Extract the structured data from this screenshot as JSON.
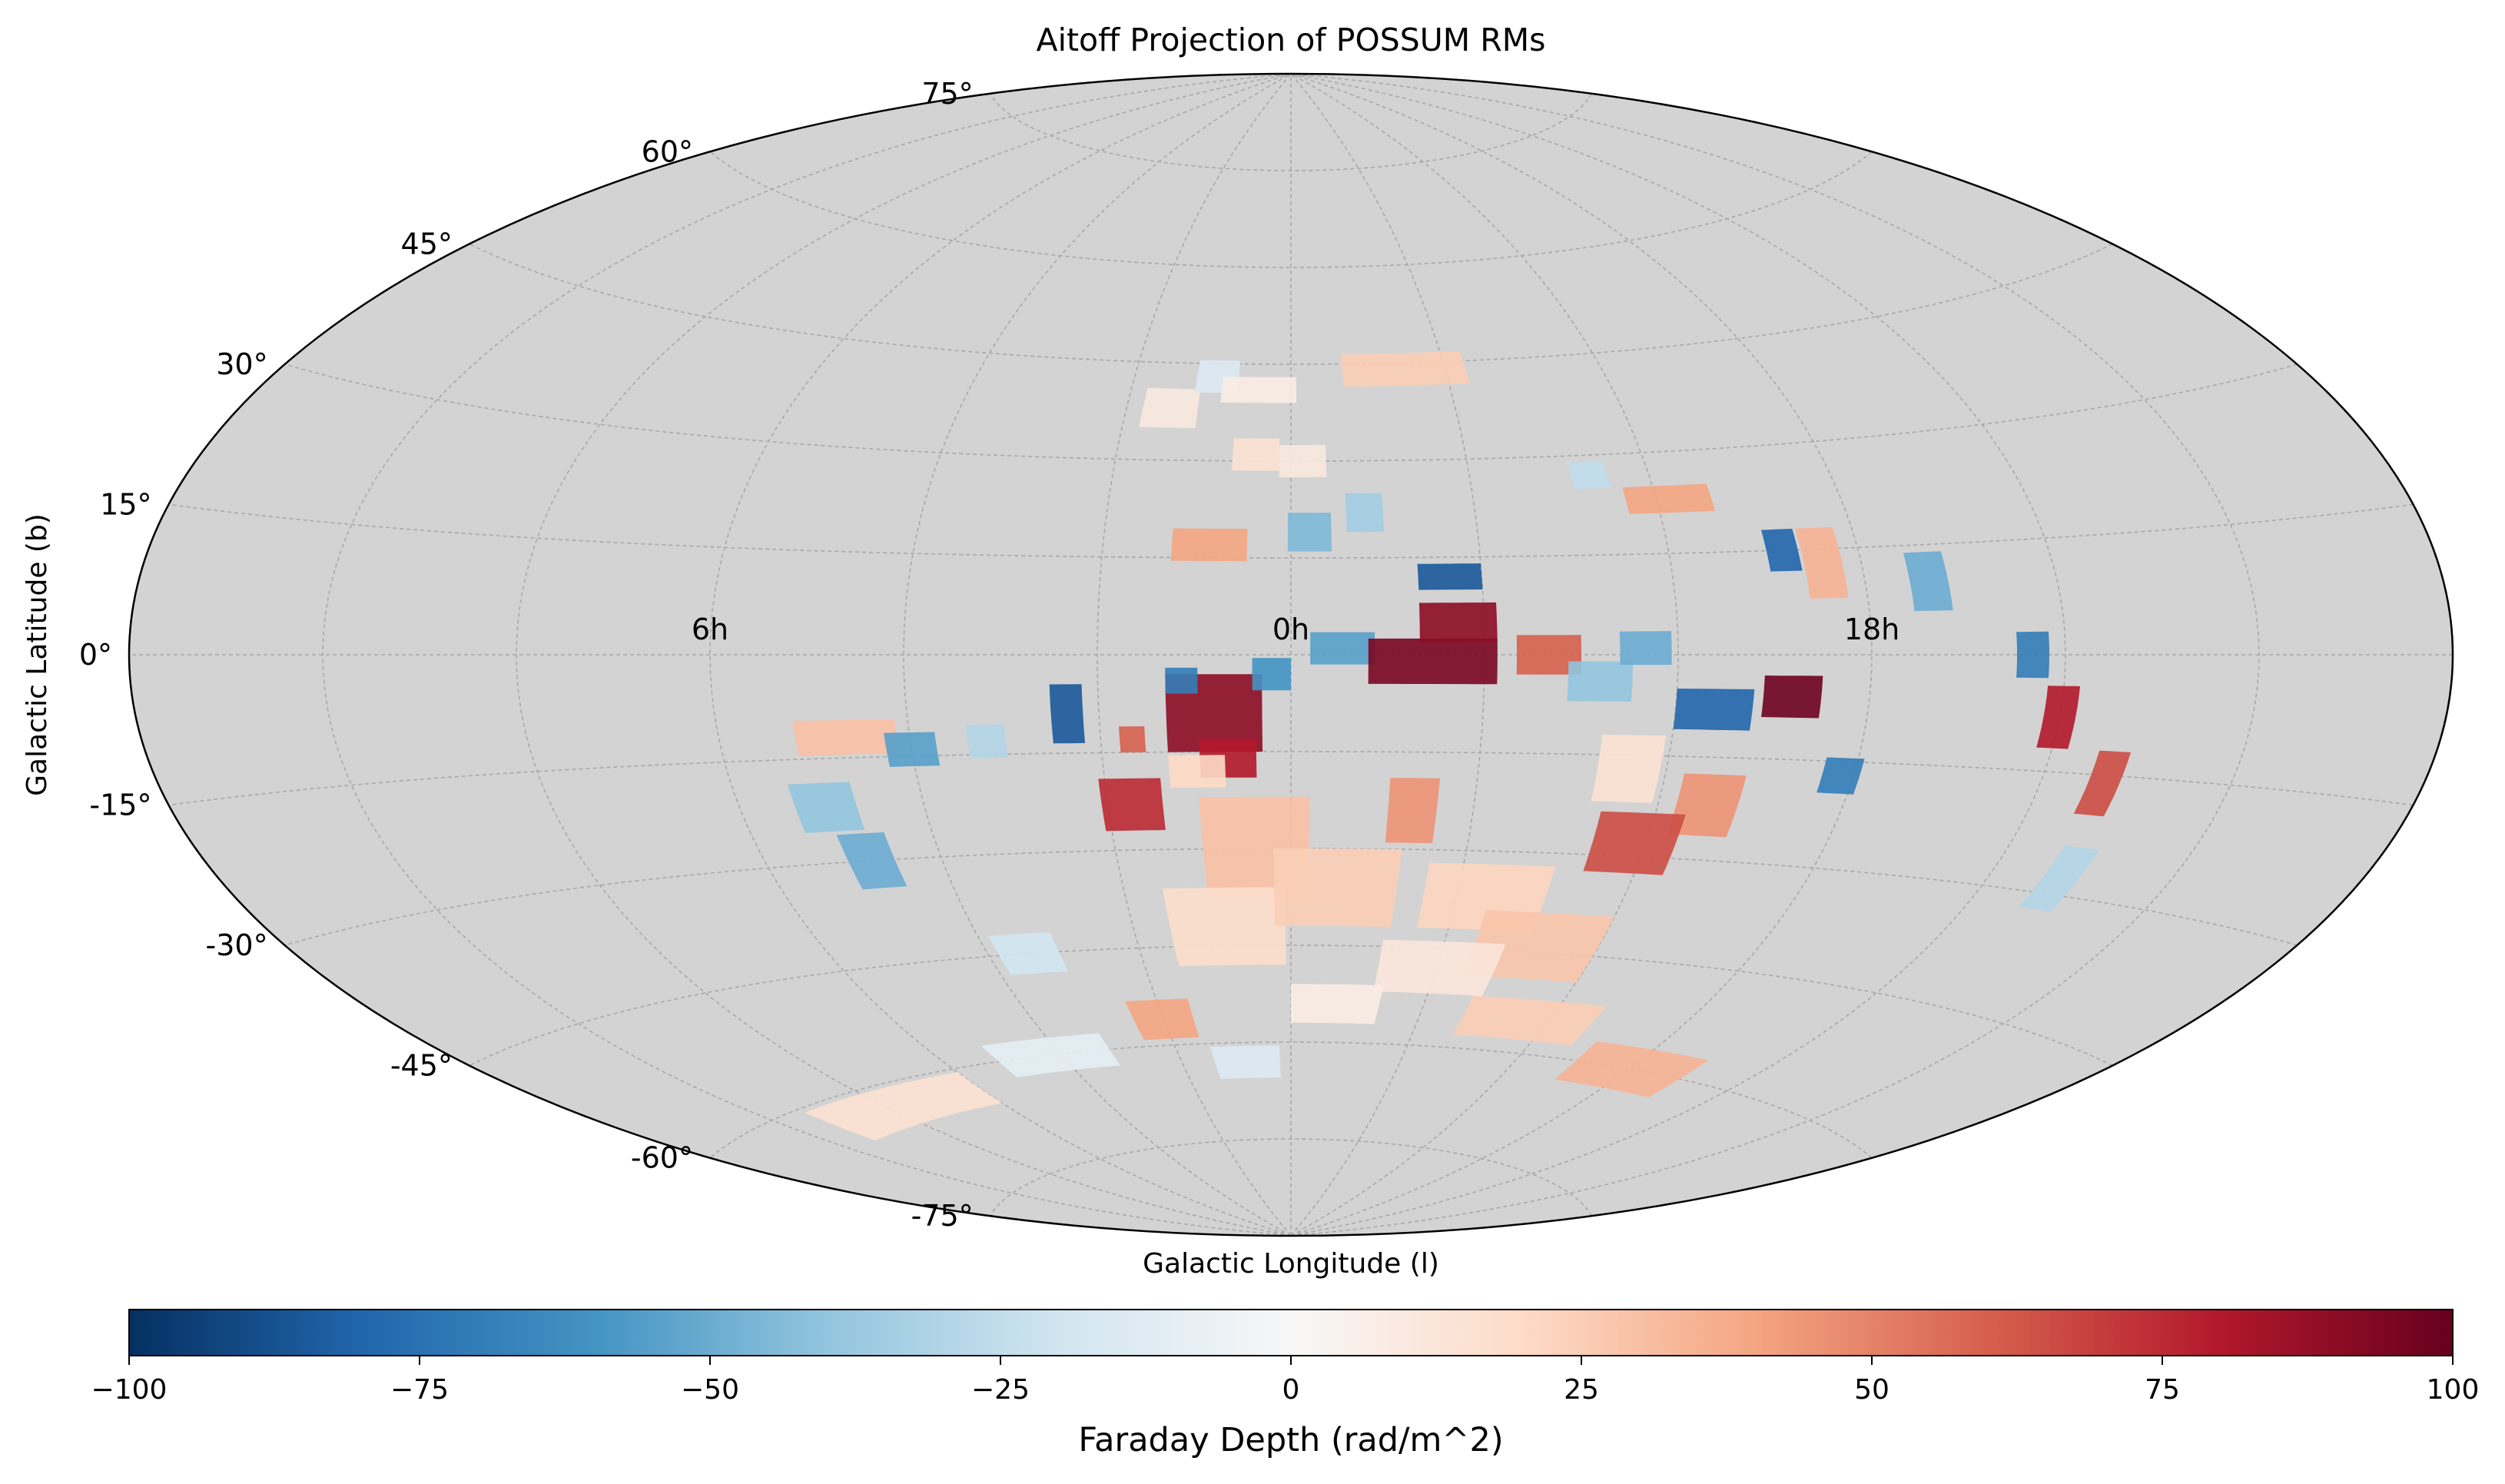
{
  "chart_data": {
    "type": "heatmap",
    "projection": "aitoff",
    "title": "Aitoff Projection of POSSUM RMs",
    "xlabel": "Galactic Longitude (l)",
    "ylabel": "Galactic Latitude (b)",
    "background_color": "#d3d3d3",
    "grid": true,
    "longitude_tick_labels": [
      {
        "label": "6h",
        "lon_deg": 90
      },
      {
        "label": "0h",
        "lon_deg": 0
      },
      {
        "label": "18h",
        "lon_deg": -90
      }
    ],
    "latitude_tick_labels": [
      {
        "label": "75°",
        "lat_deg": 75
      },
      {
        "label": "60°",
        "lat_deg": 60
      },
      {
        "label": "45°",
        "lat_deg": 45
      },
      {
        "label": "30°",
        "lat_deg": 30
      },
      {
        "label": "15°",
        "lat_deg": 15
      },
      {
        "label": "0°",
        "lat_deg": 0
      },
      {
        "label": "-15°",
        "lat_deg": -15
      },
      {
        "label": "-30°",
        "lat_deg": -30
      },
      {
        "label": "-45°",
        "lat_deg": -45
      },
      {
        "label": "-60°",
        "lat_deg": -60
      },
      {
        "label": "-75°",
        "lat_deg": -75
      }
    ],
    "colorbar": {
      "label": "Faraday Depth (rad/m^2)",
      "colormap": "RdBu_r",
      "range": [
        -100,
        100
      ],
      "ticks": [
        {
          "value": -100,
          "label": "−100"
        },
        {
          "value": -75,
          "label": "−75"
        },
        {
          "value": -50,
          "label": "−50"
        },
        {
          "value": -25,
          "label": "−25"
        },
        {
          "value": 0,
          "label": "0"
        },
        {
          "value": 25,
          "label": "25"
        },
        {
          "value": 50,
          "label": "50"
        },
        {
          "value": 75,
          "label": "75"
        },
        {
          "value": 100,
          "label": "100"
        }
      ]
    },
    "regions": [
      {
        "lon": 35,
        "lat": -9,
        "w": 5,
        "h": 9,
        "value": -85
      },
      {
        "lon": 25,
        "lat": -13,
        "w": 4,
        "h": 4,
        "value": 60
      },
      {
        "lon": 12,
        "lat": -9,
        "w": 15,
        "h": 12,
        "value": 90
      },
      {
        "lon": 10,
        "lat": -16,
        "w": 9,
        "h": 6,
        "value": 80
      },
      {
        "lon": 17,
        "lat": -4,
        "w": 5,
        "h": 4,
        "value": -70
      },
      {
        "lon": 3,
        "lat": -3,
        "w": 6,
        "h": 5,
        "value": -60
      },
      {
        "lon": -8,
        "lat": 1,
        "w": 10,
        "h": 5,
        "value": -55
      },
      {
        "lon": -22,
        "lat": -1,
        "w": 20,
        "h": 7,
        "value": 95
      },
      {
        "lon": -26,
        "lat": 5,
        "w": 12,
        "h": 6,
        "value": 90
      },
      {
        "lon": -40,
        "lat": 0,
        "w": 10,
        "h": 6,
        "value": 60
      },
      {
        "lon": -48,
        "lat": -4,
        "w": 10,
        "h": 6,
        "value": -40
      },
      {
        "lon": -55,
        "lat": 1,
        "w": 8,
        "h": 5,
        "value": -50
      },
      {
        "lon": -66,
        "lat": -8,
        "w": 12,
        "h": 6,
        "value": -80
      },
      {
        "lon": -78,
        "lat": -6,
        "w": 9,
        "h": 6,
        "value": 98
      },
      {
        "lon": -25,
        "lat": 12,
        "w": 10,
        "h": 4,
        "value": -85
      },
      {
        "lon": -88,
        "lat": -17,
        "w": 6,
        "h": 5,
        "value": -70
      },
      {
        "lon": -54,
        "lat": -17,
        "w": 10,
        "h": 10,
        "value": 15
      },
      {
        "lon": -68,
        "lat": -22,
        "w": 10,
        "h": 9,
        "value": 45
      },
      {
        "lon": -58,
        "lat": -28,
        "w": 14,
        "h": 9,
        "value": 65
      },
      {
        "lon": -20,
        "lat": -24,
        "w": 8,
        "h": 10,
        "value": 45
      },
      {
        "lon": 26,
        "lat": -23,
        "w": 10,
        "h": 8,
        "value": 75
      },
      {
        "lon": 15,
        "lat": -18,
        "w": 9,
        "h": 5,
        "value": 20
      },
      {
        "lon": 6,
        "lat": -30,
        "w": 18,
        "h": 16,
        "value": 30
      },
      {
        "lon": 12,
        "lat": -42,
        "w": 22,
        "h": 12,
        "value": 18
      },
      {
        "lon": -8,
        "lat": -36,
        "w": 22,
        "h": 12,
        "value": 25
      },
      {
        "lon": -35,
        "lat": -37,
        "w": 22,
        "h": 10,
        "value": 22
      },
      {
        "lon": -48,
        "lat": -44,
        "w": 24,
        "h": 10,
        "value": 28
      },
      {
        "lon": -30,
        "lat": -48,
        "w": 24,
        "h": 8,
        "value": 12
      },
      {
        "lon": -10,
        "lat": -54,
        "w": 20,
        "h": 6,
        "value": 8
      },
      {
        "lon": 30,
        "lat": -56,
        "w": 14,
        "h": 6,
        "value": 40
      },
      {
        "lon": 12,
        "lat": -63,
        "w": 18,
        "h": 5,
        "value": -15
      },
      {
        "lon": -55,
        "lat": -55,
        "w": 30,
        "h": 6,
        "value": 25
      },
      {
        "lon": -90,
        "lat": -60,
        "w": 30,
        "h": 6,
        "value": 35
      },
      {
        "lon": 115,
        "lat": -63,
        "w": 50,
        "h": 5,
        "value": 15
      },
      {
        "lon": 62,
        "lat": -60,
        "w": 30,
        "h": 5,
        "value": -10
      },
      {
        "lon": 52,
        "lat": -45,
        "w": 12,
        "h": 6,
        "value": -20
      },
      {
        "lon": 72,
        "lat": -30,
        "w": 8,
        "h": 8,
        "value": -50
      },
      {
        "lon": 76,
        "lat": -22,
        "w": 10,
        "h": 7,
        "value": -40
      },
      {
        "lon": 70,
        "lat": -12,
        "w": 16,
        "h": 5,
        "value": 30
      },
      {
        "lon": 60,
        "lat": -14,
        "w": 8,
        "h": 5,
        "value": -55
      },
      {
        "lon": 48,
        "lat": -13,
        "w": 6,
        "h": 5,
        "value": -30
      },
      {
        "lon": 13,
        "lat": 17,
        "w": 12,
        "h": 5,
        "value": 40
      },
      {
        "lon": -3,
        "lat": 19,
        "w": 7,
        "h": 6,
        "value": -45
      },
      {
        "lon": -12,
        "lat": 22,
        "w": 6,
        "h": 6,
        "value": -35
      },
      {
        "lon": 6,
        "lat": 31,
        "w": 8,
        "h": 5,
        "value": 15
      },
      {
        "lon": -2,
        "lat": 30,
        "w": 8,
        "h": 5,
        "value": 10
      },
      {
        "lon": 22,
        "lat": 38,
        "w": 10,
        "h": 6,
        "value": 10
      },
      {
        "lon": 14,
        "lat": 43,
        "w": 8,
        "h": 5,
        "value": -15
      },
      {
        "lon": 6,
        "lat": 41,
        "w": 14,
        "h": 4,
        "value": 8
      },
      {
        "lon": -22,
        "lat": 44,
        "w": 24,
        "h": 5,
        "value": 25
      },
      {
        "lon": -50,
        "lat": 27,
        "w": 6,
        "h": 4,
        "value": -25
      },
      {
        "lon": -62,
        "lat": 23,
        "w": 14,
        "h": 4,
        "value": 40
      },
      {
        "lon": -78,
        "lat": 15,
        "w": 5,
        "h": 6,
        "value": -80
      },
      {
        "lon": -84,
        "lat": 13,
        "w": 6,
        "h": 10,
        "value": 35
      },
      {
        "lon": -100,
        "lat": 10,
        "w": 6,
        "h": 8,
        "value": -50
      },
      {
        "lon": -115,
        "lat": 0,
        "w": 5,
        "h": 6,
        "value": -70
      },
      {
        "lon": -120,
        "lat": -8,
        "w": 5,
        "h": 8,
        "value": 80
      },
      {
        "lon": -130,
        "lat": -16,
        "w": 5,
        "h": 8,
        "value": 65
      },
      {
        "lon": -132,
        "lat": -28,
        "w": 6,
        "h": 8,
        "value": -30
      }
    ]
  }
}
